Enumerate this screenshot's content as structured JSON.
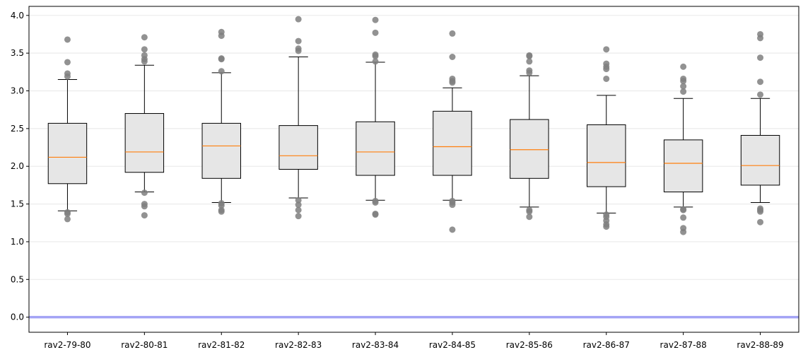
{
  "chart_data": {
    "type": "box",
    "title": "",
    "xlabel": "",
    "ylabel": "",
    "categories": [
      "rav2-79-80",
      "rav2-80-81",
      "rav2-81-82",
      "rav2-82-83",
      "rav2-83-84",
      "rav2-84-85",
      "rav2-85-86",
      "rav2-86-87",
      "rav2-87-88",
      "rav2-88-89"
    ],
    "ylim": [
      -0.2,
      4.12
    ],
    "yticks": [
      "0.0",
      "0.5",
      "1.0",
      "1.5",
      "2.0",
      "2.5",
      "3.0",
      "3.5",
      "4.0"
    ],
    "grid": "horizontal",
    "reference_line": {
      "y": 0.0,
      "color": "#a3a3f5"
    },
    "colors": {
      "box_fill": "#e6e6e6",
      "box_edge": "#000000",
      "median": "#ff7f0e",
      "outlier": "#7f7f7f",
      "grid": "#ebebeb"
    },
    "boxes": [
      {
        "whisker_low": 1.41,
        "q1": 1.77,
        "median": 2.12,
        "q3": 2.57,
        "whisker_high": 3.15,
        "outliers": [
          3.68,
          3.38,
          3.23,
          3.19,
          1.39,
          1.37,
          1.3
        ]
      },
      {
        "whisker_low": 1.66,
        "q1": 1.92,
        "median": 2.19,
        "q3": 2.7,
        "whisker_high": 3.34,
        "outliers": [
          3.71,
          3.55,
          3.47,
          3.42,
          3.39,
          1.65,
          1.5,
          1.47,
          1.35
        ]
      },
      {
        "whisker_low": 1.52,
        "q1": 1.84,
        "median": 2.27,
        "q3": 2.57,
        "whisker_high": 3.24,
        "outliers": [
          3.78,
          3.73,
          3.43,
          3.42,
          3.26,
          1.51,
          1.48,
          1.42,
          1.4
        ]
      },
      {
        "whisker_low": 1.58,
        "q1": 1.96,
        "median": 2.14,
        "q3": 2.54,
        "whisker_high": 3.45,
        "outliers": [
          3.95,
          3.66,
          3.56,
          3.53,
          1.55,
          1.49,
          1.42,
          1.34
        ]
      },
      {
        "whisker_low": 1.55,
        "q1": 1.88,
        "median": 2.19,
        "q3": 2.59,
        "whisker_high": 3.38,
        "outliers": [
          3.94,
          3.77,
          3.48,
          3.46,
          3.39,
          1.54,
          1.52,
          1.37,
          1.36
        ]
      },
      {
        "whisker_low": 1.55,
        "q1": 1.88,
        "median": 2.26,
        "q3": 2.73,
        "whisker_high": 3.04,
        "outliers": [
          3.76,
          3.45,
          3.16,
          3.13,
          3.11,
          1.54,
          1.52,
          1.49,
          1.16
        ]
      },
      {
        "whisker_low": 1.46,
        "q1": 1.84,
        "median": 2.22,
        "q3": 2.62,
        "whisker_high": 3.2,
        "outliers": [
          3.47,
          3.46,
          3.39,
          3.27,
          3.24,
          1.42,
          1.4,
          1.33
        ]
      },
      {
        "whisker_low": 1.38,
        "q1": 1.73,
        "median": 2.05,
        "q3": 2.55,
        "whisker_high": 2.94,
        "outliers": [
          3.55,
          3.36,
          3.32,
          3.29,
          3.16,
          1.36,
          1.33,
          1.28,
          1.23,
          1.2
        ]
      },
      {
        "whisker_low": 1.46,
        "q1": 1.66,
        "median": 2.04,
        "q3": 2.35,
        "whisker_high": 2.9,
        "outliers": [
          3.32,
          3.16,
          3.13,
          3.06,
          2.99,
          1.43,
          1.42,
          1.32,
          1.18,
          1.13
        ]
      },
      {
        "whisker_low": 1.52,
        "q1": 1.75,
        "median": 2.01,
        "q3": 2.41,
        "whisker_high": 2.9,
        "outliers": [
          3.75,
          3.7,
          3.44,
          3.12,
          2.95,
          1.44,
          1.42,
          1.4,
          1.26
        ]
      }
    ]
  }
}
